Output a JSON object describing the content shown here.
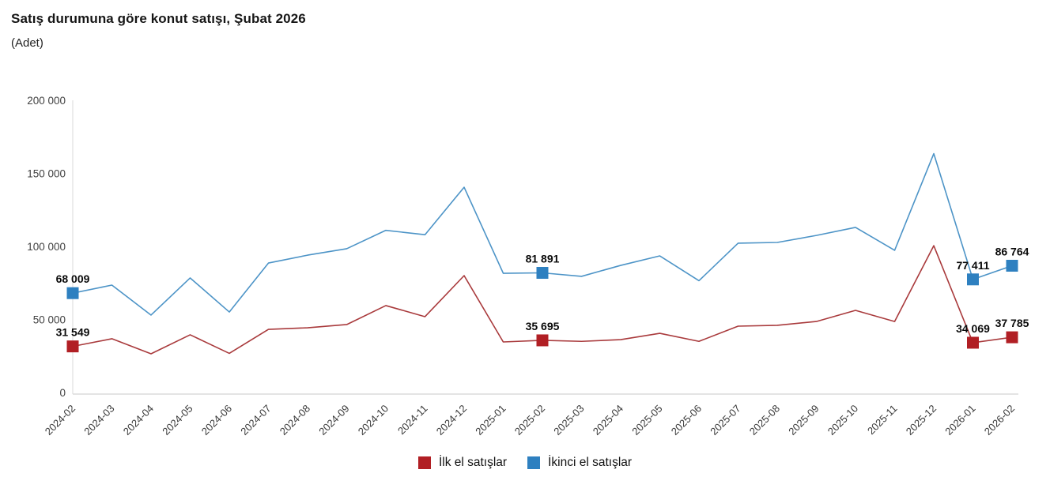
{
  "header": {
    "title": "Satış durumuna göre konut satışı, Şubat 2026",
    "subtitle": "(Adet)"
  },
  "chart_data": {
    "type": "line",
    "title": "Satış durumuna göre konut satışı, Şubat 2026",
    "subtitle": "(Adet)",
    "xlabel": "",
    "ylabel": "Adet",
    "ylim": [
      0,
      200000
    ],
    "yticks": [
      0,
      50000,
      100000,
      150000,
      200000
    ],
    "ytick_labels": [
      "0",
      "50 000",
      "100 000",
      "150 000",
      "200 000"
    ],
    "grid": false,
    "legend_position": "bottom",
    "x": [
      "2024-02",
      "2024-03",
      "2024-04",
      "2024-05",
      "2024-06",
      "2024-07",
      "2024-08",
      "2024-09",
      "2024-10",
      "2024-11",
      "2024-12",
      "2025-01",
      "2025-02",
      "2025-03",
      "2025-04",
      "2025-05",
      "2025-06",
      "2025-07",
      "2025-08",
      "2025-09",
      "2025-10",
      "2025-11",
      "2025-12",
      "2026-01",
      "2026-02"
    ],
    "series": [
      {
        "id": "ilk-el-satislar",
        "name": "İlk el satışlar",
        "marker_color": "#b11f24",
        "line_color": "#a93a3c",
        "values": [
          31549,
          36800,
          26500,
          39500,
          26800,
          43200,
          44300,
          46500,
          59500,
          51900,
          80000,
          34600,
          35695,
          35000,
          36200,
          40500,
          35000,
          45400,
          46000,
          48600,
          56200,
          48600,
          100500,
          34069,
          37785
        ],
        "point_labels": {
          "0": "31 549",
          "12": "35 695",
          "23": "34 069",
          "24": "37 785"
        }
      },
      {
        "id": "ikinci-el-satislar",
        "name": "İkinci el satışlar",
        "marker_color": "#2e80c0",
        "line_color": "#4d94c7",
        "values": [
          68009,
          73500,
          53000,
          78400,
          55100,
          88600,
          94000,
          98400,
          111000,
          108000,
          140500,
          81600,
          81891,
          79500,
          87000,
          93500,
          76500,
          102200,
          102700,
          107500,
          113000,
          97300,
          163500,
          77411,
          86764
        ],
        "point_labels": {
          "0": "68 009",
          "12": "81 891",
          "23": "77 411",
          "24": "86 764"
        }
      }
    ]
  }
}
